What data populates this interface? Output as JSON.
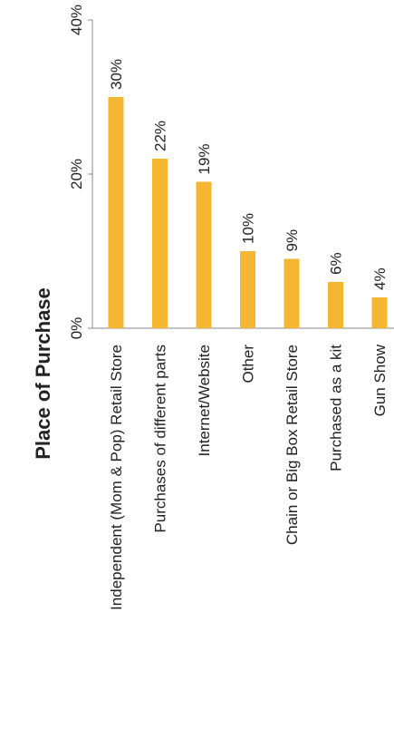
{
  "chart_data": {
    "type": "bar",
    "orientation": "rotated",
    "title": "Place of Purchase",
    "categories": [
      "Independent (Mom & Pop) Retail Store",
      "Purchases of different parts",
      "Internet/Website",
      "Other",
      "Chain or Big Box Retail Store",
      "Purchased as a kit",
      "Gun Show"
    ],
    "values": [
      30,
      22,
      19,
      10,
      9,
      6,
      4
    ],
    "value_labels": [
      "30%",
      "22%",
      "19%",
      "10%",
      "9%",
      "6%",
      "4%"
    ],
    "ylim": [
      0,
      40
    ],
    "yticks": [
      0,
      20,
      40
    ],
    "ytick_labels": [
      "0%",
      "20%",
      "40%"
    ],
    "grid": false,
    "legend": "none",
    "colors": {
      "bar": "#f5b731",
      "axis": "#8a8a8a",
      "text": "#222222"
    }
  }
}
